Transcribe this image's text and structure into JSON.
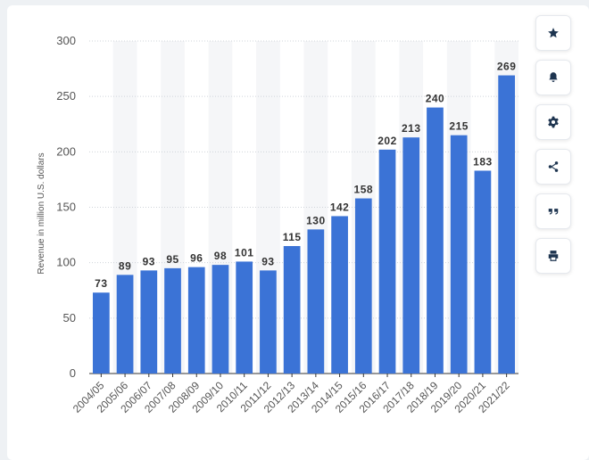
{
  "chart_data": {
    "type": "bar",
    "categories": [
      "2004/05",
      "2005/06",
      "2006/07",
      "2007/08",
      "2008/09",
      "2009/10",
      "2010/11",
      "2011/12",
      "2012/13",
      "2013/14",
      "2014/15",
      "2015/16",
      "2016/17",
      "2017/18",
      "2018/19",
      "2019/20",
      "2020/21",
      "2021/22"
    ],
    "values": [
      73,
      89,
      93,
      95,
      96,
      98,
      101,
      93,
      115,
      130,
      142,
      158,
      202,
      213,
      240,
      215,
      183,
      269
    ],
    "ylabel": "Revenue in million U.S. dollars",
    "ylim": [
      0,
      300
    ],
    "yticks": [
      0,
      50,
      100,
      150,
      200,
      250,
      300
    ],
    "grid": true,
    "legend": "none"
  },
  "colors": {
    "bar": "#3b73d6",
    "band": "#f5f6f8",
    "grid": "#cfd4da",
    "axis_text": "#555555",
    "label_text": "#333333"
  },
  "toolbar": [
    {
      "name": "favorite-button",
      "icon": "star-icon"
    },
    {
      "name": "notification-button",
      "icon": "bell-icon"
    },
    {
      "name": "settings-button",
      "icon": "gear-icon"
    },
    {
      "name": "share-button",
      "icon": "share-icon"
    },
    {
      "name": "cite-button",
      "icon": "quote-icon"
    },
    {
      "name": "print-button",
      "icon": "print-icon"
    }
  ]
}
